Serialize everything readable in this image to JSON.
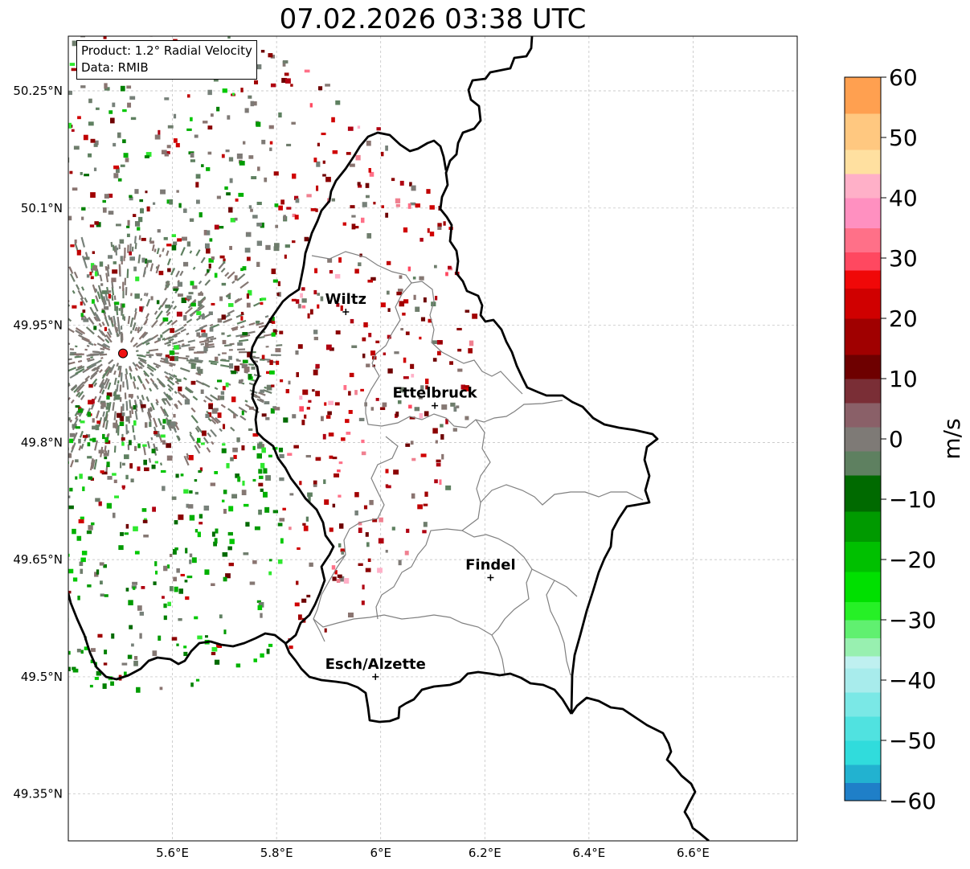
{
  "title": "07.02.2026 03:38 UTC",
  "info": {
    "product_line": "Product: 1.2° Radial Velocity",
    "data_line": "Data: RMIB"
  },
  "map": {
    "extent": {
      "lon_min": 5.4,
      "lon_max": 6.8,
      "lat_min": 49.29,
      "lat_max": 50.32
    },
    "lon_ticks": [
      {
        "value": 5.6,
        "label": "5.6°E"
      },
      {
        "value": 5.8,
        "label": "5.8°E"
      },
      {
        "value": 6.0,
        "label": "6°E"
      },
      {
        "value": 6.2,
        "label": "6.2°E"
      },
      {
        "value": 6.4,
        "label": "6.4°E"
      },
      {
        "value": 6.6,
        "label": "6.6°E"
      }
    ],
    "lat_ticks": [
      {
        "value": 50.25,
        "label": "50.25°N"
      },
      {
        "value": 50.1,
        "label": "50.1°N"
      },
      {
        "value": 49.95,
        "label": "49.95°N"
      },
      {
        "value": 49.8,
        "label": "49.8°N"
      },
      {
        "value": 49.65,
        "label": "49.65°N"
      },
      {
        "value": 49.5,
        "label": "49.5°N"
      },
      {
        "value": 49.35,
        "label": "49.35°N"
      }
    ],
    "radar_site": {
      "lon": 5.505,
      "lat": 49.914
    },
    "cities": [
      {
        "name": "Wiltz",
        "lon": 5.933,
        "lat": 49.967
      },
      {
        "name": "Ettelbruck",
        "lon": 6.104,
        "lat": 49.847
      },
      {
        "name": "Findel",
        "lon": 6.211,
        "lat": 49.627
      },
      {
        "name": "Esch/Alzette",
        "lon": 5.99,
        "lat": 49.5
      }
    ],
    "border_color": "#000000",
    "district_color": "#808080"
  },
  "colorbar": {
    "label": "m/s",
    "min": -60,
    "max": 60,
    "ticks": [
      {
        "value": 60,
        "label": "60"
      },
      {
        "value": 50,
        "label": "50"
      },
      {
        "value": 40,
        "label": "40"
      },
      {
        "value": 30,
        "label": "30"
      },
      {
        "value": 20,
        "label": "20"
      },
      {
        "value": 10,
        "label": "10"
      },
      {
        "value": 0,
        "label": "0"
      },
      {
        "value": -10,
        "label": "−10"
      },
      {
        "value": -20,
        "label": "−20"
      },
      {
        "value": -30,
        "label": "−30"
      },
      {
        "value": -40,
        "label": "−40"
      },
      {
        "value": -50,
        "label": "−50"
      },
      {
        "value": -60,
        "label": "−60"
      }
    ],
    "stops": [
      {
        "from": -60,
        "to": -57,
        "color": "#1f7fc8"
      },
      {
        "from": -57,
        "to": -54,
        "color": "#22b2d0"
      },
      {
        "from": -54,
        "to": -50,
        "color": "#30dcdc"
      },
      {
        "from": -50,
        "to": -46,
        "color": "#50e2e0"
      },
      {
        "from": -46,
        "to": -42,
        "color": "#7ae8e6"
      },
      {
        "from": -42,
        "to": -38,
        "color": "#a8ecec"
      },
      {
        "from": -38,
        "to": -36,
        "color": "#bff0f0"
      },
      {
        "from": -36,
        "to": -33,
        "color": "#98f0b0"
      },
      {
        "from": -33,
        "to": -30,
        "color": "#60f070"
      },
      {
        "from": -30,
        "to": -27,
        "color": "#26f026"
      },
      {
        "from": -27,
        "to": -22,
        "color": "#00e000"
      },
      {
        "from": -22,
        "to": -17,
        "color": "#00c000"
      },
      {
        "from": -17,
        "to": -12,
        "color": "#009a00"
      },
      {
        "from": -12,
        "to": -6,
        "color": "#006a00"
      },
      {
        "from": -6,
        "to": -2,
        "color": "#5e8060"
      },
      {
        "from": -2,
        "to": 2,
        "color": "#7e7a76"
      },
      {
        "from": 2,
        "to": 6,
        "color": "#8a6068"
      },
      {
        "from": 6,
        "to": 10,
        "color": "#7a2e36"
      },
      {
        "from": 10,
        "to": 14,
        "color": "#6e0000"
      },
      {
        "from": 14,
        "to": 20,
        "color": "#a00000"
      },
      {
        "from": 20,
        "to": 25,
        "color": "#d00000"
      },
      {
        "from": 25,
        "to": 28,
        "color": "#f00808"
      },
      {
        "from": 28,
        "to": 31,
        "color": "#ff4860"
      },
      {
        "from": 31,
        "to": 35,
        "color": "#ff7088"
      },
      {
        "from": 35,
        "to": 40,
        "color": "#ff90c0"
      },
      {
        "from": 40,
        "to": 44,
        "color": "#ffb0c8"
      },
      {
        "from": 44,
        "to": 48,
        "color": "#ffe0a0"
      },
      {
        "from": 48,
        "to": 54,
        "color": "#ffc880"
      },
      {
        "from": 54,
        "to": 60,
        "color": "#ffa050"
      }
    ]
  }
}
